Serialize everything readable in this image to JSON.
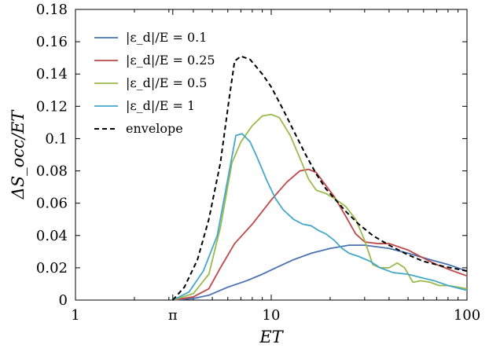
{
  "chart_data": {
    "type": "line",
    "title": "",
    "xlabel": "ET",
    "ylabel": "ΔS_occ/ET",
    "xscale": "log",
    "xlim": [
      1,
      100
    ],
    "ylim": [
      0,
      0.18
    ],
    "xticks": [
      {
        "value": 1,
        "label": "1"
      },
      {
        "value": 3.14159,
        "label": "π"
      },
      {
        "value": 10,
        "label": "10"
      },
      {
        "value": 100,
        "label": "100"
      }
    ],
    "yticks": [
      {
        "value": 0,
        "label": "0"
      },
      {
        "value": 0.02,
        "label": "0.02"
      },
      {
        "value": 0.04,
        "label": "0.04"
      },
      {
        "value": 0.06,
        "label": "0.06"
      },
      {
        "value": 0.08,
        "label": "0.08"
      },
      {
        "value": 0.1,
        "label": "0.1"
      },
      {
        "value": 0.12,
        "label": "0.12"
      },
      {
        "value": 0.14,
        "label": "0.14"
      },
      {
        "value": 0.16,
        "label": "0.16"
      },
      {
        "value": 0.18,
        "label": "0.18"
      }
    ],
    "legend_position": "top-left",
    "series": [
      {
        "name": "|ε_d|/E = 0.1",
        "color": "#4a72b0",
        "dash": "solid",
        "points": [
          [
            3.14,
            0
          ],
          [
            4,
            0.001
          ],
          [
            4.8,
            0.003
          ],
          [
            6,
            0.008
          ],
          [
            7.5,
            0.012
          ],
          [
            9,
            0.016
          ],
          [
            11,
            0.021
          ],
          [
            13,
            0.025
          ],
          [
            16,
            0.029
          ],
          [
            20,
            0.032
          ],
          [
            25,
            0.034
          ],
          [
            30,
            0.034
          ],
          [
            40,
            0.032
          ],
          [
            50,
            0.029
          ],
          [
            65,
            0.025
          ],
          [
            80,
            0.022
          ],
          [
            100,
            0.018
          ]
        ]
      },
      {
        "name": "|ε_d|/E = 0.25",
        "color": "#c04848",
        "dash": "solid",
        "points": [
          [
            3.14,
            0
          ],
          [
            4,
            0.002
          ],
          [
            4.8,
            0.007
          ],
          [
            5.5,
            0.02
          ],
          [
            6.5,
            0.035
          ],
          [
            8,
            0.047
          ],
          [
            10,
            0.062
          ],
          [
            12,
            0.073
          ],
          [
            14,
            0.08
          ],
          [
            15.5,
            0.081
          ],
          [
            17,
            0.079
          ],
          [
            19,
            0.071
          ],
          [
            21,
            0.064
          ],
          [
            24,
            0.052
          ],
          [
            27,
            0.041
          ],
          [
            30,
            0.036
          ],
          [
            35,
            0.035
          ],
          [
            40,
            0.035
          ],
          [
            50,
            0.031
          ],
          [
            60,
            0.026
          ],
          [
            70,
            0.022
          ],
          [
            85,
            0.018
          ],
          [
            100,
            0.015
          ]
        ]
      },
      {
        "name": "|ε_d|/E = 0.5",
        "color": "#9aba4c",
        "dash": "solid",
        "points": [
          [
            3.14,
            0
          ],
          [
            4,
            0.004
          ],
          [
            4.8,
            0.016
          ],
          [
            5.5,
            0.045
          ],
          [
            6.3,
            0.085
          ],
          [
            7,
            0.098
          ],
          [
            8,
            0.108
          ],
          [
            9,
            0.114
          ],
          [
            10,
            0.115
          ],
          [
            11,
            0.113
          ],
          [
            12.5,
            0.102
          ],
          [
            14,
            0.088
          ],
          [
            15.5,
            0.075
          ],
          [
            17,
            0.068
          ],
          [
            19,
            0.066
          ],
          [
            21,
            0.063
          ],
          [
            24,
            0.058
          ],
          [
            27,
            0.05
          ],
          [
            30,
            0.037
          ],
          [
            33,
            0.022
          ],
          [
            36,
            0.02
          ],
          [
            40,
            0.02
          ],
          [
            44,
            0.023
          ],
          [
            48,
            0.02
          ],
          [
            53,
            0.011
          ],
          [
            58,
            0.012
          ],
          [
            65,
            0.011
          ],
          [
            72,
            0.009
          ],
          [
            80,
            0.009
          ],
          [
            90,
            0.008
          ],
          [
            100,
            0.007
          ]
        ]
      },
      {
        "name": "|ε_d|/E = 1",
        "color": "#45a8c8",
        "dash": "solid",
        "points": [
          [
            3.14,
            0
          ],
          [
            3.8,
            0.005
          ],
          [
            4.5,
            0.018
          ],
          [
            5.3,
            0.04
          ],
          [
            6,
            0.075
          ],
          [
            6.6,
            0.102
          ],
          [
            7.1,
            0.103
          ],
          [
            7.8,
            0.098
          ],
          [
            8.5,
            0.088
          ],
          [
            9.5,
            0.074
          ],
          [
            10.5,
            0.063
          ],
          [
            11.5,
            0.056
          ],
          [
            13,
            0.05
          ],
          [
            14.5,
            0.047
          ],
          [
            16,
            0.046
          ],
          [
            17.5,
            0.043
          ],
          [
            19,
            0.041
          ],
          [
            21,
            0.037
          ],
          [
            23,
            0.032
          ],
          [
            25,
            0.029
          ],
          [
            28,
            0.027
          ],
          [
            32,
            0.024
          ],
          [
            36,
            0.02
          ],
          [
            42,
            0.017
          ],
          [
            50,
            0.016
          ],
          [
            58,
            0.014
          ],
          [
            68,
            0.012
          ],
          [
            80,
            0.009
          ],
          [
            100,
            0.006
          ]
        ]
      },
      {
        "name": "envelope",
        "color": "#000000",
        "dash": "dashed",
        "points": [
          [
            3.14,
            0
          ],
          [
            3.6,
            0.008
          ],
          [
            4.2,
            0.025
          ],
          [
            4.8,
            0.05
          ],
          [
            5.5,
            0.085
          ],
          [
            6.1,
            0.125
          ],
          [
            6.5,
            0.148
          ],
          [
            7,
            0.151
          ],
          [
            7.8,
            0.149
          ],
          [
            9,
            0.14
          ],
          [
            10,
            0.132
          ],
          [
            11.5,
            0.118
          ],
          [
            13,
            0.105
          ],
          [
            15,
            0.09
          ],
          [
            17,
            0.078
          ],
          [
            19,
            0.069
          ],
          [
            21,
            0.063
          ],
          [
            24,
            0.055
          ],
          [
            28,
            0.047
          ],
          [
            33,
            0.04
          ],
          [
            40,
            0.034
          ],
          [
            50,
            0.028
          ],
          [
            60,
            0.024
          ],
          [
            75,
            0.021
          ],
          [
            100,
            0.018
          ]
        ]
      }
    ]
  }
}
